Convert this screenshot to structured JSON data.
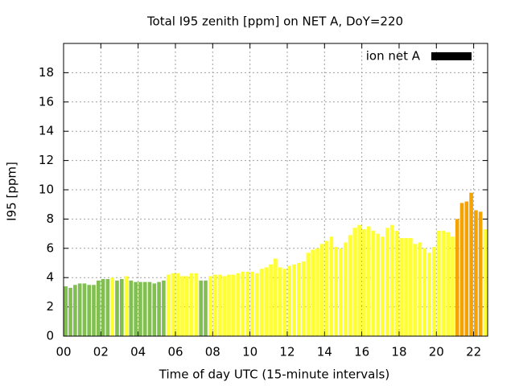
{
  "chart_data": {
    "type": "bar",
    "title": "Total I95 zenith [ppm] on NET A, DoY=220",
    "x_label": "Time of day UTC (15-minute intervals)",
    "y_label": "I95 [ppm]",
    "xlim": [
      0,
      22.75
    ],
    "ylim": [
      0,
      20
    ],
    "xticks": [
      {
        "value": 0,
        "label": "00"
      },
      {
        "value": 2,
        "label": "02"
      },
      {
        "value": 4,
        "label": "04"
      },
      {
        "value": 6,
        "label": "06"
      },
      {
        "value": 8,
        "label": "08"
      },
      {
        "value": 10,
        "label": "10"
      },
      {
        "value": 12,
        "label": "12"
      },
      {
        "value": 14,
        "label": "14"
      },
      {
        "value": 16,
        "label": "16"
      },
      {
        "value": 18,
        "label": "18"
      },
      {
        "value": 20,
        "label": "20"
      },
      {
        "value": 22,
        "label": "22"
      }
    ],
    "yticks": [
      0,
      2,
      4,
      6,
      8,
      10,
      12,
      14,
      16,
      18
    ],
    "grid": true,
    "legend": "top-right",
    "x": [
      0,
      0.25,
      0.5,
      0.75,
      1,
      1.25,
      1.5,
      1.75,
      2,
      2.25,
      2.5,
      2.75,
      3,
      3.25,
      3.5,
      3.75,
      4,
      4.25,
      4.5,
      4.75,
      5,
      5.25,
      5.5,
      5.75,
      6,
      6.25,
      6.5,
      6.75,
      7,
      7.25,
      7.5,
      7.75,
      8,
      8.25,
      8.5,
      8.75,
      9,
      9.25,
      9.5,
      9.75,
      10,
      10.25,
      10.5,
      10.75,
      11,
      11.25,
      11.5,
      11.75,
      12,
      12.25,
      12.5,
      12.75,
      13,
      13.25,
      13.5,
      13.75,
      14,
      14.25,
      14.5,
      14.75,
      15,
      15.25,
      15.5,
      15.75,
      16,
      16.25,
      16.5,
      16.75,
      17,
      17.25,
      17.5,
      17.75,
      18,
      18.25,
      18.5,
      18.75,
      19,
      19.25,
      19.5,
      19.75,
      20,
      20.25,
      20.5,
      20.75,
      21,
      21.25,
      21.5,
      21.75,
      22,
      22.25,
      22.5
    ],
    "series": [
      {
        "name": "ion net A",
        "color": "#000000",
        "values": [
          3.4,
          3.3,
          3.5,
          3.6,
          3.6,
          3.5,
          3.5,
          3.8,
          3.9,
          3.9,
          4.0,
          3.8,
          3.9,
          4.1,
          3.8,
          3.7,
          3.7,
          3.7,
          3.7,
          3.6,
          3.7,
          3.8,
          4.2,
          4.3,
          4.3,
          4.1,
          4.1,
          4.3,
          4.3,
          3.8,
          3.8,
          4.1,
          4.2,
          4.2,
          4.1,
          4.2,
          4.2,
          4.3,
          4.4,
          4.4,
          4.4,
          4.3,
          4.6,
          4.7,
          4.9,
          5.3,
          4.7,
          4.6,
          4.8,
          4.9,
          5.0,
          5.1,
          5.7,
          5.9,
          6.0,
          6.3,
          6.5,
          6.8,
          6.1,
          6.0,
          6.4,
          6.9,
          7.4,
          7.6,
          7.3,
          7.5,
          7.2,
          7.0,
          6.8,
          7.4,
          7.6,
          7.2,
          6.7,
          6.7,
          6.7,
          6.3,
          6.4,
          6.0,
          5.7,
          6.1,
          7.2,
          7.2,
          7.1,
          6.8,
          8.0,
          9.1,
          9.2,
          9.8,
          8.6,
          8.5,
          7.3
        ],
        "colors": [
          "#80bf50",
          "#80bf50",
          "#80bf50",
          "#80bf50",
          "#80bf50",
          "#80bf50",
          "#80bf50",
          "#80bf50",
          "#80bf50",
          "#80bf50",
          "#ffff33",
          "#80bf50",
          "#80bf50",
          "#ffff33",
          "#80bf50",
          "#80bf50",
          "#80bf50",
          "#80bf50",
          "#80bf50",
          "#80bf50",
          "#80bf50",
          "#80bf50",
          "#ffff33",
          "#ffff33",
          "#ffff33",
          "#ffff33",
          "#ffff33",
          "#ffff33",
          "#ffff33",
          "#80bf50",
          "#80bf50",
          "#ffff33",
          "#ffff33",
          "#ffff33",
          "#ffff33",
          "#ffff33",
          "#ffff33",
          "#ffff33",
          "#ffff33",
          "#ffff33",
          "#ffff33",
          "#ffff33",
          "#ffff33",
          "#ffff33",
          "#ffff33",
          "#ffff33",
          "#ffff33",
          "#ffff33",
          "#ffff33",
          "#ffff33",
          "#ffff33",
          "#ffff33",
          "#ffff33",
          "#ffff33",
          "#ffff33",
          "#ffff33",
          "#ffff33",
          "#ffff33",
          "#ffff33",
          "#ffff33",
          "#ffff33",
          "#ffff33",
          "#ffff33",
          "#ffff33",
          "#ffff33",
          "#ffff33",
          "#ffff33",
          "#ffff33",
          "#ffff33",
          "#ffff33",
          "#ffff33",
          "#ffff33",
          "#ffff33",
          "#ffff33",
          "#ffff33",
          "#ffff33",
          "#ffff33",
          "#ffff33",
          "#ffff33",
          "#ffff33",
          "#ffff33",
          "#ffff33",
          "#ffff33",
          "#ffff33",
          "#f5a300",
          "#f5a300",
          "#f5a300",
          "#f5a300",
          "#f5a300",
          "#f5a300",
          "#ffff33"
        ]
      }
    ]
  }
}
